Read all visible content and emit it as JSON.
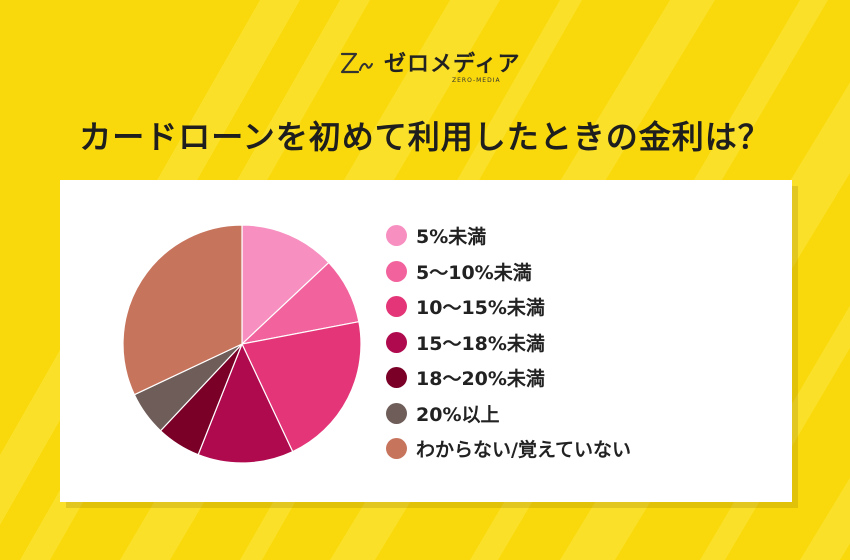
{
  "logo": {
    "text": "ゼロメディア",
    "sub": "ZERO-MEDIA"
  },
  "colors": {
    "background": "#f9d90b",
    "stripe": "#fbe53e"
  },
  "chart_data": {
    "type": "pie",
    "title": "カードローンを初めて利用したときの金利は？",
    "legend_position": "right",
    "slices": [
      {
        "label": "5%未満",
        "value": 13,
        "color": "#f78fc0"
      },
      {
        "label": "5〜10%未満",
        "value": 9,
        "color": "#f2629d"
      },
      {
        "label": "10〜15%未満",
        "value": 21,
        "color": "#e33577"
      },
      {
        "label": "15〜18%未満",
        "value": 13,
        "color": "#b00a4f"
      },
      {
        "label": "18〜20%未満",
        "value": 6,
        "color": "#7a0028"
      },
      {
        "label": "20%以上",
        "value": 6,
        "color": "#6e5d59"
      },
      {
        "label": "わからない/覚えていない",
        "value": 32,
        "color": "#c7745d"
      }
    ]
  }
}
